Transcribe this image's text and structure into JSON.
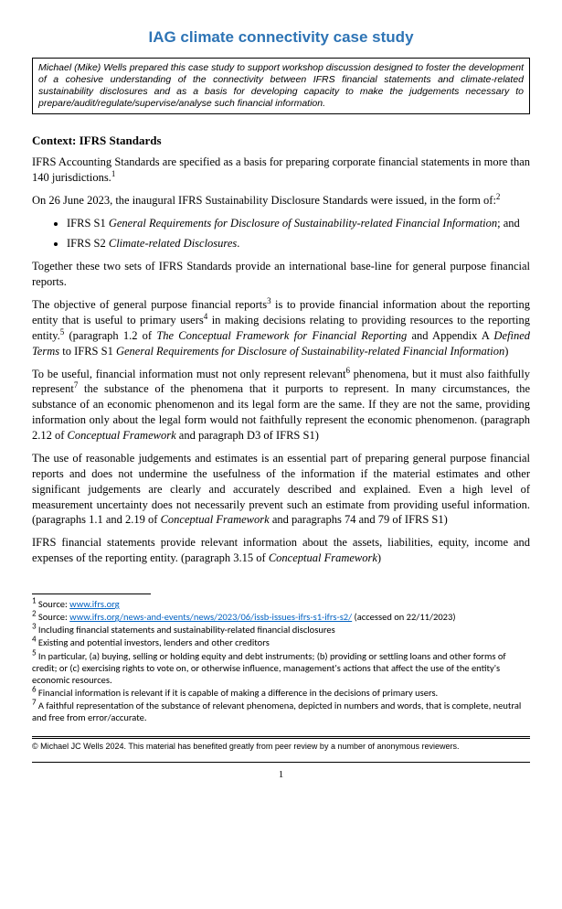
{
  "title": "IAG climate connectivity case study",
  "intro": "Michael (Mike) Wells prepared this case study to support workshop discussion designed to foster the development of a cohesive understanding of the connectivity between IFRS financial statements and climate-related sustainability disclosures and as a basis for developing capacity to make the judgements necessary to prepare/audit/regulate/supervise/analyse such financial information.",
  "context_head": "Context: IFRS Standards",
  "p1a": "IFRS Accounting Standards are specified as a basis for preparing corporate financial statements in more than 140 jurisdictions.",
  "p2a": "On 26 June 2023, the inaugural IFRS Sustainability Disclosure Standards were issued, in the form of:",
  "li1a": "IFRS S1 ",
  "li1b": "General Requirements for Disclosure of Sustainability-related Financial Information",
  "li1c": "; and",
  "li2a": "IFRS S2 ",
  "li2b": "Climate-related Disclosures",
  "li2c": ".",
  "p3": "Together these two sets of IFRS Standards provide an international base-line for general purpose financial reports.",
  "p4a": "The objective of general purpose financial reports",
  "p4b": " is to provide financial information about the reporting entity that is useful to primary users",
  "p4c": " in making decisions relating to providing resources to the reporting entity.",
  "p4d": " (paragraph 1.2 of ",
  "p4e": "The Conceptual Framework for Financial Reporting",
  "p4f": " and Appendix A ",
  "p4g": "Defined Terms",
  "p4h": " to IFRS S1 ",
  "p4i": "General Requirements for Disclosure of Sustainability-related Financial Information",
  "p4j": ")",
  "p5a": "To be useful, financial information must not only represent relevant",
  "p5b": " phenomena, but it must also faithfully represent",
  "p5c": " the substance of the phenomena that it purports to represent.  In many circumstances, the substance of an economic phenomenon and its legal form are the same.  If they are not the same, providing information only about the legal form would not faithfully represent the economic phenomenon. (paragraph 2.12 of ",
  "p5d": "Conceptual Framework",
  "p5e": " and paragraph D3 of IFRS S1)",
  "p6a": "The use of reasonable judgements and estimates is an essential part of preparing general purpose financial reports and does not undermine the usefulness of the information if the material estimates and other significant judgements are clearly and accurately described and explained.  Even a high level of measurement uncertainty does not necessarily prevent such an estimate from providing useful information. (paragraphs 1.1 and 2.19 of ",
  "p6b": "Conceptual Framework",
  "p6c": " and paragraphs 74 and 79 of IFRS S1)",
  "p7a": "IFRS financial statements provide relevant information about the assets, liabilities, equity, income and expenses of the reporting entity. (paragraph 3.15 of ",
  "p7b": "Conceptual Framework",
  "p7c": ")",
  "fn1a": " Source: ",
  "fn1b": "www.ifrs.org",
  "fn2a": " Source: ",
  "fn2b": "www.ifrs.org/news-and-events/news/2023/06/issb-issues-ifrs-s1-ifrs-s2/",
  "fn2c": " (accessed on 22/11/2023)",
  "fn3": " Including financial statements and sustainability-related financial disclosures",
  "fn4": " Existing and potential investors, lenders and other creditors",
  "fn5": " In particular, (a) buying, selling or holding equity and debt instruments; (b) providing or settling loans and other forms of credit; or (c) exercising rights to vote on, or otherwise influence, management's actions that affect the use of the entity's economic resources.",
  "fn6": " Financial information is relevant if it is capable of making a difference in the decisions of primary users.",
  "fn7": " A faithful representation of the substance of relevant phenomena, depicted in numbers and words, that is complete, neutral and free from error/accurate.",
  "copyright": "© Michael JC Wells 2024.  This material has benefited greatly from peer review by a number of anonymous reviewers.",
  "pagenum": "1",
  "sup1": "1",
  "sup2": "2",
  "sup3": "3",
  "sup4": "4",
  "sup5": "5",
  "sup6": "6",
  "sup7": "7"
}
